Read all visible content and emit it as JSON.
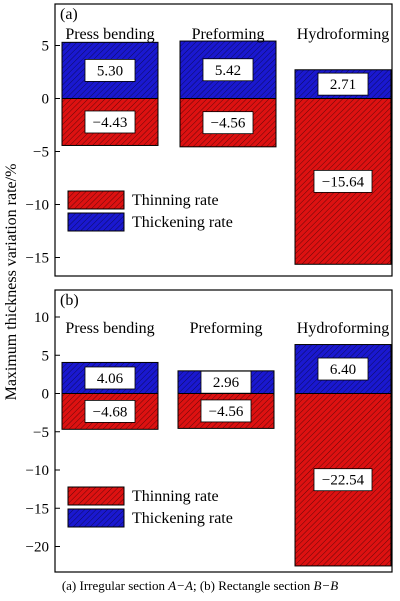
{
  "caption": {
    "part1": "(a) Irregular section ",
    "italic1": "A−A",
    "part2": "; (b) Rectangle section ",
    "italic2": "B−B"
  },
  "ylabel": "Maximum thickness variation rate/%",
  "colors": {
    "thinning": "#dd1111",
    "thickening": "#1a18d0",
    "hatch": "#000000"
  },
  "chart_data": [
    {
      "type": "bar",
      "panel_label": "(a)",
      "categories": [
        "Press bending",
        "Preforming",
        "Hydroforming"
      ],
      "series": [
        {
          "name": "Thinning rate",
          "values": [
            -4.43,
            -4.56,
            -15.64
          ],
          "labels": [
            "−4.43",
            "−4.56",
            "−15.64"
          ]
        },
        {
          "name": "Thickening rate",
          "values": [
            5.3,
            5.42,
            2.71
          ],
          "labels": [
            "5.30",
            "5.42",
            "2.71"
          ]
        }
      ],
      "ylim": [
        -17,
        6
      ],
      "yticks": [
        5,
        0,
        -5,
        -10,
        -15
      ],
      "ytick_labels": [
        "5",
        "0",
        "−5",
        "−10",
        "−15"
      ],
      "legend": [
        "Thinning rate",
        "Thickening rate"
      ],
      "legend_position": "lower-left"
    },
    {
      "type": "bar",
      "panel_label": "(b)",
      "categories": [
        "Press bending",
        "Preforming",
        "Hydroforming"
      ],
      "series": [
        {
          "name": "Thinning rate",
          "values": [
            -4.68,
            -4.56,
            -22.54
          ],
          "labels": [
            "−4.68",
            "−4.56",
            "−22.54"
          ]
        },
        {
          "name": "Thickening rate",
          "values": [
            4.06,
            2.96,
            6.4
          ],
          "labels": [
            "4.06",
            "2.96",
            "6.40"
          ]
        }
      ],
      "ylim": [
        -24,
        12
      ],
      "yticks": [
        10,
        5,
        0,
        -5,
        -10,
        -15,
        -20
      ],
      "ytick_labels": [
        "10",
        "5",
        "0",
        "−5",
        "−10",
        "−15",
        "−20"
      ],
      "legend": [
        "Thinning rate",
        "Thickening rate"
      ],
      "legend_position": "lower-left"
    }
  ]
}
